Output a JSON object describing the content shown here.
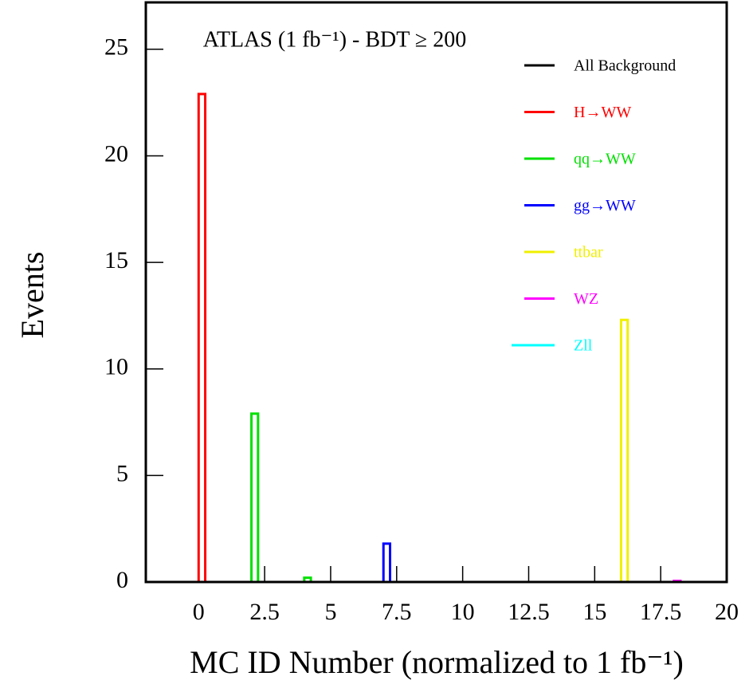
{
  "chart_data": {
    "type": "bar",
    "title": "ATLAS (1 fb⁻¹) - BDT ≥ 200",
    "x_label": "MC ID Number (normalized to 1 fb⁻¹)",
    "y_label": "Events",
    "xlim": [
      -2,
      20
    ],
    "xticks": [
      0,
      2.5,
      5,
      7.5,
      10,
      12.5,
      15,
      17.5,
      20
    ],
    "ylim": [
      0,
      27.2
    ],
    "yticks": [
      0,
      5,
      10,
      15,
      20,
      25
    ],
    "series": [
      {
        "name": "All Background",
        "color": "#000000",
        "x": [],
        "values": []
      },
      {
        "name": "H→WW",
        "color": "#ff0000",
        "x": [
          0
        ],
        "values": [
          22.9
        ]
      },
      {
        "name": "qq→WW",
        "color": "#00e000",
        "x": [
          2,
          4
        ],
        "values": [
          7.9,
          0.2
        ]
      },
      {
        "name": "gg→WW",
        "color": "#0000ff",
        "x": [
          7
        ],
        "values": [
          1.8
        ]
      },
      {
        "name": "ttbar",
        "color": "#f0f000",
        "x": [
          16
        ],
        "values": [
          12.3
        ]
      },
      {
        "name": "WZ",
        "color": "#ff00ff",
        "x": [
          18
        ],
        "values": [
          0.05
        ]
      },
      {
        "name": "Zll",
        "color": "#00ffff",
        "x": [],
        "values": []
      }
    ]
  }
}
